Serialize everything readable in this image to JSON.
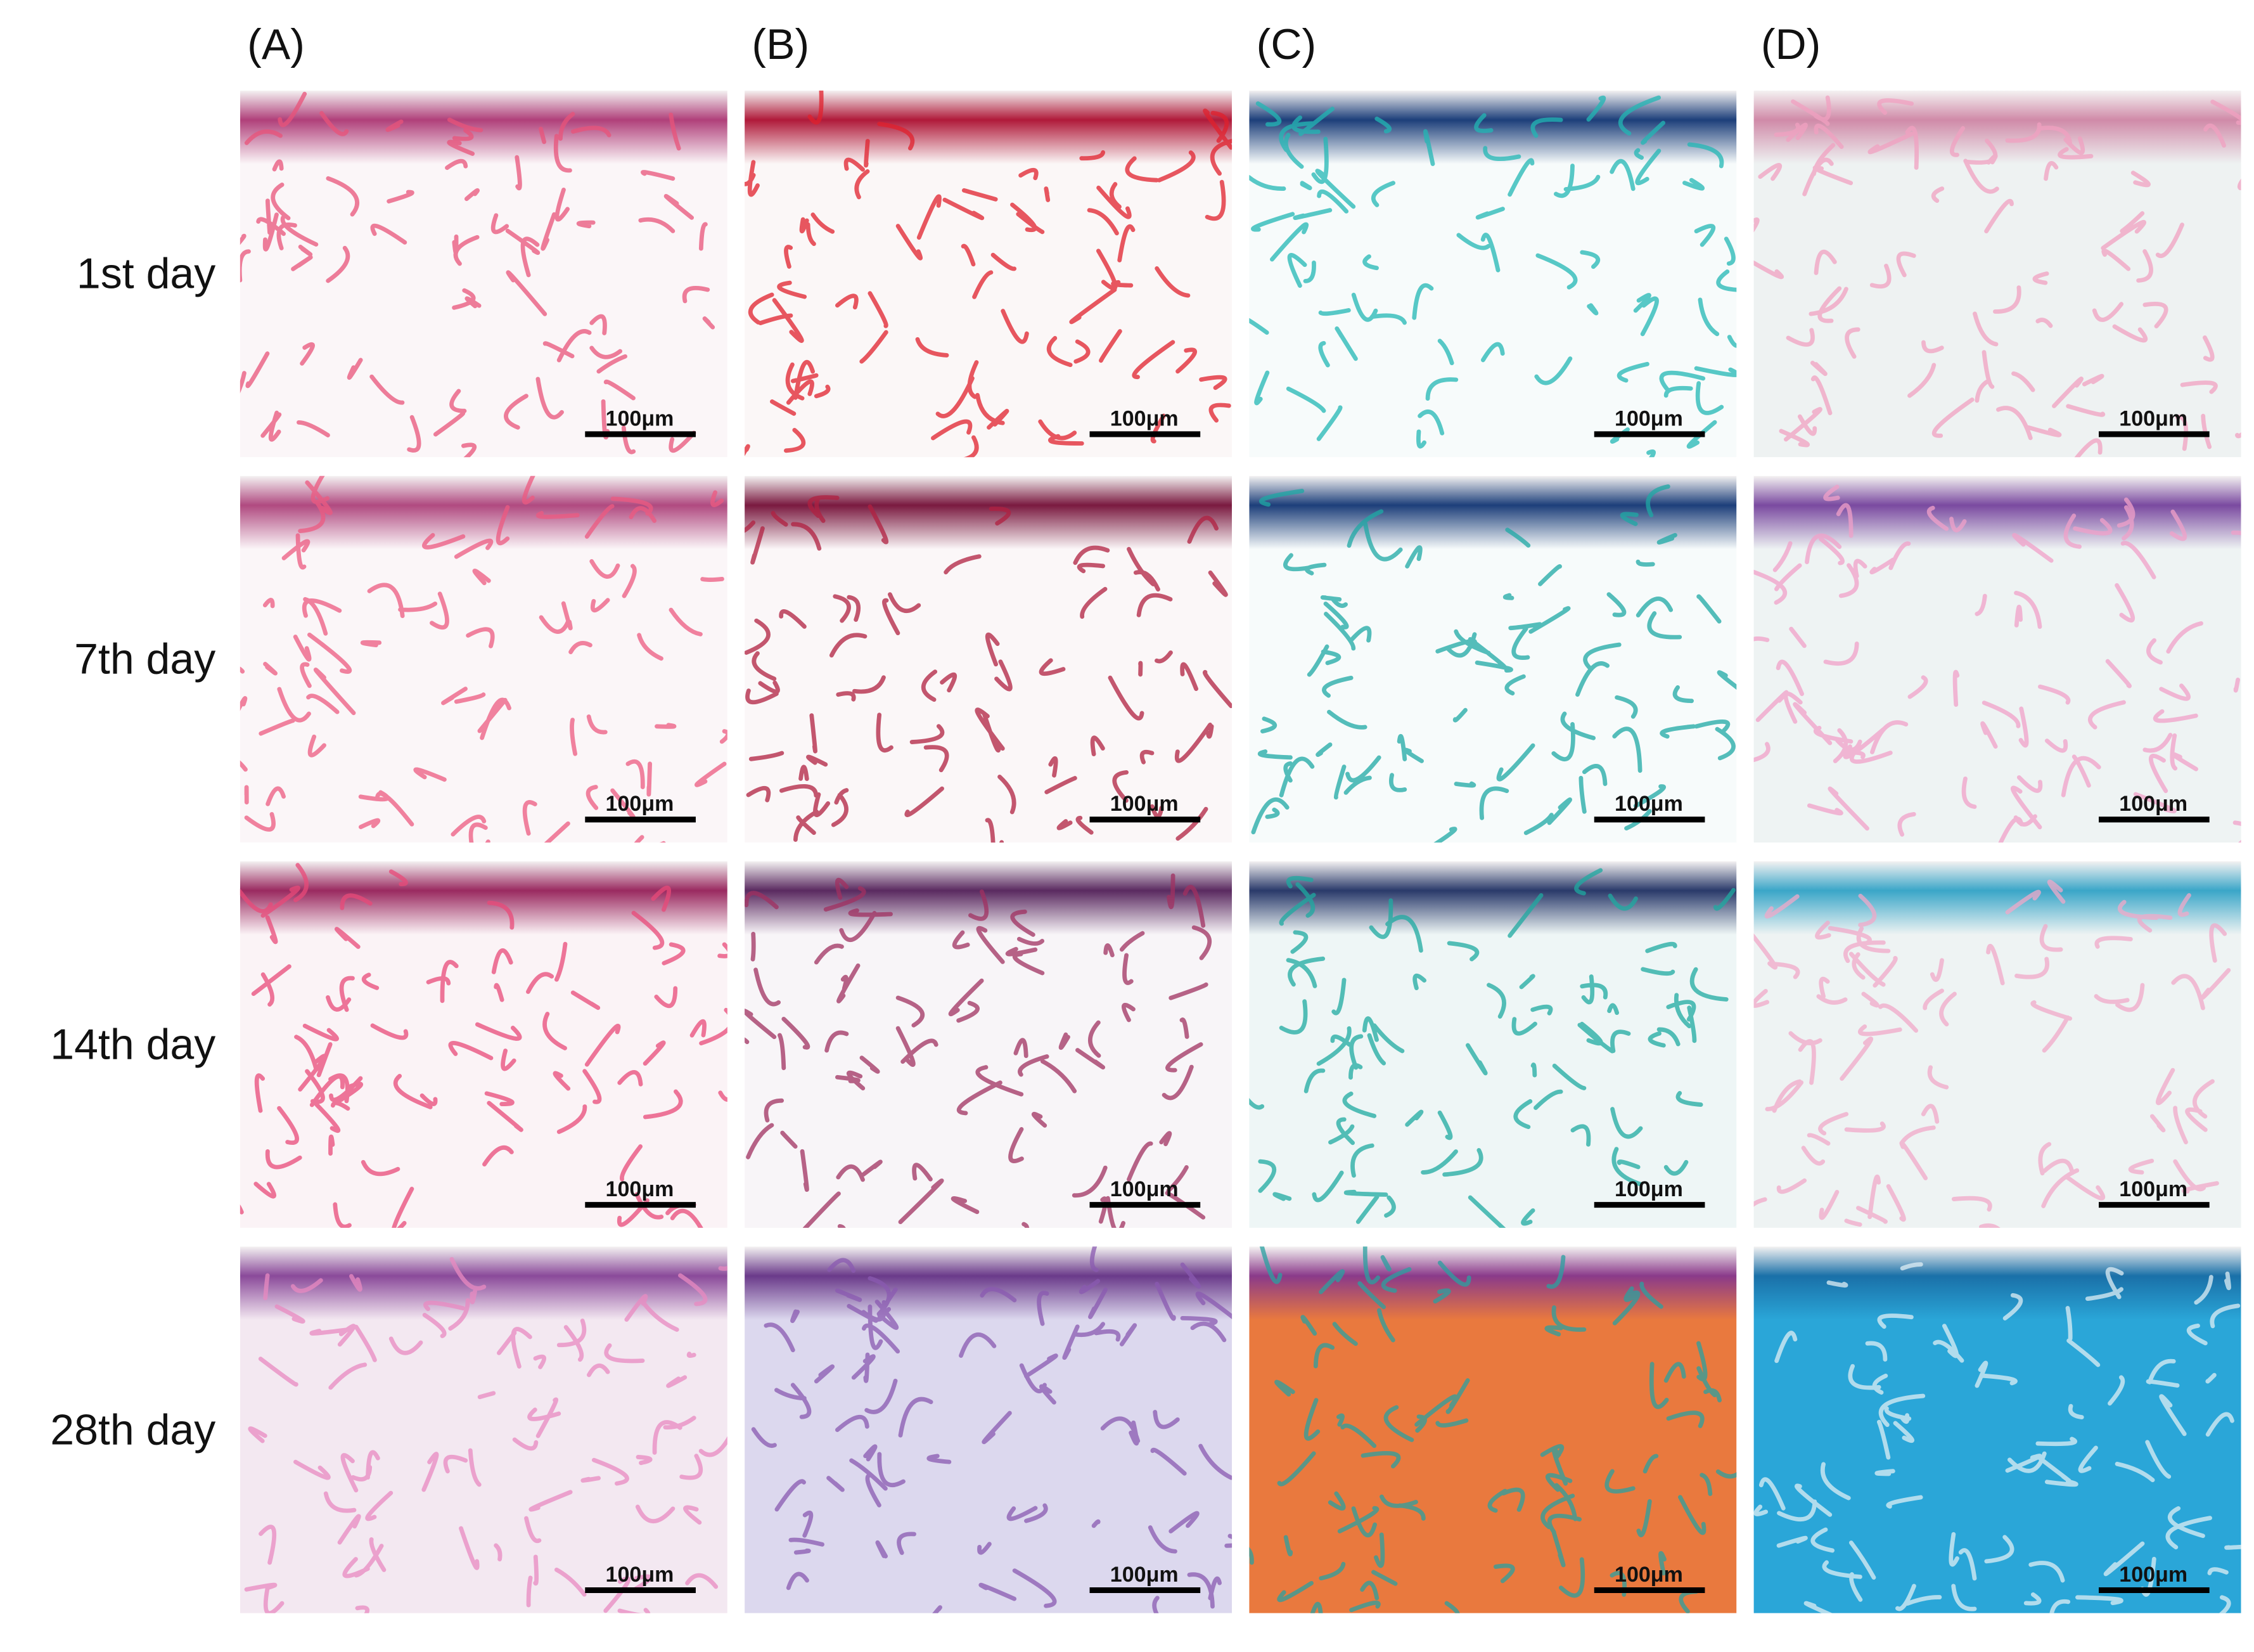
{
  "columns": [
    "(A)",
    "(B)",
    "(C)",
    "(D)"
  ],
  "rows": [
    {
      "label": "1st day",
      "panels": [
        {
          "scale_bar": "100μm"
        },
        {
          "scale_bar": "100μm"
        },
        {
          "scale_bar": "100μm"
        },
        {
          "scale_bar": "100μm"
        }
      ]
    },
    {
      "label": "7th day",
      "panels": [
        {
          "scale_bar": "100μm"
        },
        {
          "scale_bar": "100μm"
        },
        {
          "scale_bar": "100μm"
        },
        {
          "scale_bar": "100μm"
        }
      ]
    },
    {
      "label": "14th day",
      "panels": [
        {
          "scale_bar": "100μm"
        },
        {
          "scale_bar": "100μm"
        },
        {
          "scale_bar": "100μm"
        },
        {
          "scale_bar": "100μm"
        }
      ]
    },
    {
      "label": "28th day",
      "panels": [
        {
          "scale_bar": "100μm"
        },
        {
          "scale_bar": "100μm"
        },
        {
          "scale_bar": "100μm"
        },
        {
          "scale_bar": "100μm"
        }
      ]
    }
  ]
}
